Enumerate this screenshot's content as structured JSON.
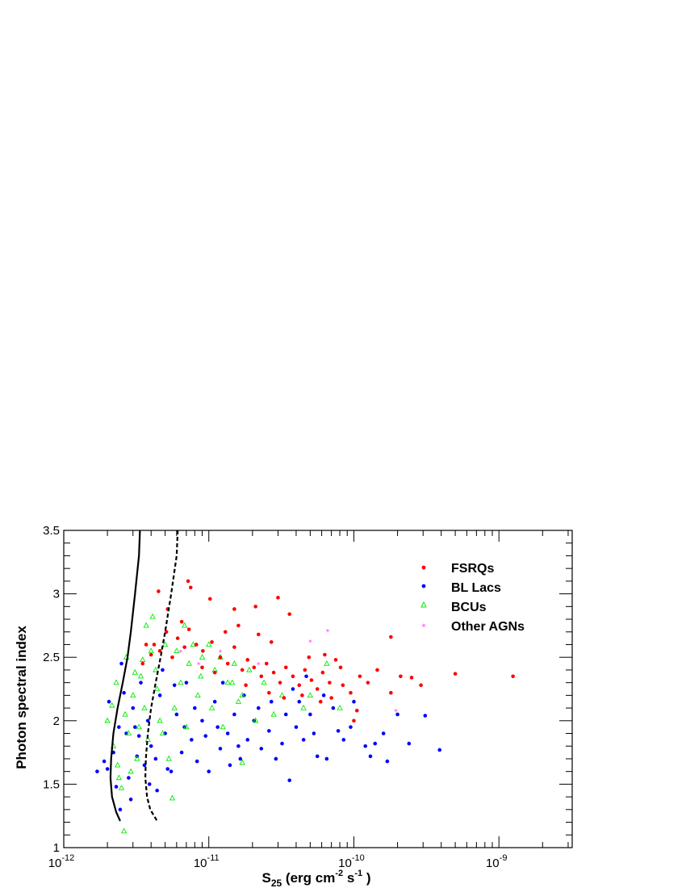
{
  "chart_data": {
    "type": "scatter",
    "title": "",
    "xlabel": {
      "base": "S",
      "sub": "25",
      "unit_open": " (erg cm",
      "exp1": "-2",
      "mid": " s",
      "exp2": "-1",
      "unit_close": " )"
    },
    "ylabel": "Photon spectral index",
    "x_scale": "log",
    "xlim": [
      1e-12,
      3.2e-09
    ],
    "ylim": [
      1.0,
      3.5
    ],
    "grid": false,
    "legend_position": "top-right",
    "x_ticks": [
      {
        "value": 1e-12,
        "base": "10",
        "exp": "-12"
      },
      {
        "value": 1e-11,
        "base": "10",
        "exp": "-11"
      },
      {
        "value": 1e-10,
        "base": "10",
        "exp": "-10"
      },
      {
        "value": 1e-09,
        "base": "10",
        "exp": "-9"
      }
    ],
    "y_ticks": [
      "1",
      "1.5",
      "2",
      "2.5",
      "3",
      "3.5"
    ],
    "colors": {
      "fsrq": "#ff0000",
      "bllac": "#0000ff",
      "bcu": "#00ee00",
      "other": "#ff66ff",
      "curve": "#000000"
    },
    "series": [
      {
        "name": "FSRQs",
        "marker": "circle",
        "color": "#ff0000",
        "points": [
          [
            4.2e-12,
            2.6
          ],
          [
            4.6e-12,
            2.55
          ],
          [
            5.1e-12,
            2.7
          ],
          [
            5.6e-12,
            2.5
          ],
          [
            6.1e-12,
            2.65
          ],
          [
            6.8e-12,
            2.58
          ],
          [
            7.3e-12,
            2.72
          ],
          [
            8.2e-12,
            2.6
          ],
          [
            9.1e-12,
            2.55
          ],
          [
            1.05e-11,
            2.62
          ],
          [
            1.2e-11,
            2.5
          ],
          [
            1.35e-11,
            2.45
          ],
          [
            1.5e-11,
            2.58
          ],
          [
            1.7e-11,
            2.4
          ],
          [
            1.85e-11,
            2.48
          ],
          [
            2.05e-11,
            2.42
          ],
          [
            2.3e-11,
            2.35
          ],
          [
            2.5e-11,
            2.45
          ],
          [
            2.8e-11,
            2.38
          ],
          [
            3.1e-11,
            2.3
          ],
          [
            3.4e-11,
            2.42
          ],
          [
            3.8e-11,
            2.35
          ],
          [
            4.2e-11,
            2.28
          ],
          [
            4.6e-11,
            2.4
          ],
          [
            5.1e-11,
            2.32
          ],
          [
            5.6e-11,
            2.25
          ],
          [
            6.1e-11,
            2.38
          ],
          [
            6.8e-11,
            2.3
          ],
          [
            7.5e-11,
            2.48
          ],
          [
            8.4e-11,
            2.28
          ],
          [
            9.5e-11,
            2.22
          ],
          [
            1.1e-10,
            2.35
          ],
          [
            1.25e-10,
            2.3
          ],
          [
            1.45e-10,
            2.4
          ],
          [
            1.8e-10,
            2.22
          ],
          [
            2.1e-10,
            2.35
          ],
          [
            2.5e-10,
            2.34
          ],
          [
            2.9e-10,
            2.28
          ],
          [
            5e-10,
            2.37
          ],
          [
            1.25e-09,
            2.35
          ],
          [
            1.8e-10,
            2.66
          ],
          [
            4.5e-12,
            3.02
          ],
          [
            7.2e-12,
            3.1
          ],
          [
            7.5e-12,
            3.05
          ],
          [
            1.02e-11,
            2.96
          ],
          [
            1.5e-11,
            2.88
          ],
          [
            2.1e-11,
            2.9
          ],
          [
            3e-11,
            2.97
          ],
          [
            3.6e-11,
            2.84
          ],
          [
            1e-10,
            2.0
          ],
          [
            1.05e-10,
            2.08
          ],
          [
            1.6e-11,
            2.75
          ],
          [
            2.2e-11,
            2.68
          ],
          [
            5.2e-12,
            2.88
          ],
          [
            6.5e-12,
            2.78
          ],
          [
            1.3e-11,
            2.7
          ],
          [
            2.7e-11,
            2.62
          ],
          [
            4.9e-11,
            2.5
          ],
          [
            6.3e-11,
            2.52
          ],
          [
            8.1e-11,
            2.42
          ],
          [
            3.7e-12,
            2.6
          ],
          [
            3.5e-12,
            2.45
          ],
          [
            4e-12,
            2.52
          ],
          [
            9e-12,
            2.42
          ],
          [
            1.1e-11,
            2.38
          ],
          [
            1.8e-11,
            2.28
          ],
          [
            2.6e-11,
            2.22
          ],
          [
            3.3e-11,
            2.18
          ],
          [
            4.4e-11,
            2.2
          ],
          [
            5.9e-11,
            2.15
          ],
          [
            7e-11,
            2.18
          ]
        ]
      },
      {
        "name": "BL Lacs",
        "marker": "circle",
        "color": "#0000ff",
        "points": [
          [
            1.7e-12,
            1.6
          ],
          [
            1.9e-12,
            1.68
          ],
          [
            2e-12,
            1.62
          ],
          [
            2.05e-12,
            2.15
          ],
          [
            2.2e-12,
            1.75
          ],
          [
            2.3e-12,
            1.48
          ],
          [
            2.45e-12,
            1.3
          ],
          [
            2.5e-12,
            2.45
          ],
          [
            2.7e-12,
            1.9
          ],
          [
            2.8e-12,
            1.55
          ],
          [
            3e-12,
            2.1
          ],
          [
            3.2e-12,
            1.72
          ],
          [
            3.4e-12,
            2.3
          ],
          [
            3.6e-12,
            1.65
          ],
          [
            3.8e-12,
            2.0
          ],
          [
            4e-12,
            1.8
          ],
          [
            4.3e-12,
            1.7
          ],
          [
            4.6e-12,
            2.2
          ],
          [
            5e-12,
            1.9
          ],
          [
            5.5e-12,
            1.6
          ],
          [
            6e-12,
            2.05
          ],
          [
            6.5e-12,
            1.75
          ],
          [
            7e-12,
            2.3
          ],
          [
            7.6e-12,
            1.85
          ],
          [
            8.3e-12,
            1.68
          ],
          [
            9e-12,
            2.0
          ],
          [
            1e-11,
            1.6
          ],
          [
            1.1e-11,
            2.15
          ],
          [
            1.2e-11,
            1.78
          ],
          [
            1.35e-11,
            1.9
          ],
          [
            1.5e-11,
            2.05
          ],
          [
            1.65e-11,
            1.7
          ],
          [
            1.85e-11,
            1.85
          ],
          [
            2.05e-11,
            2.0
          ],
          [
            2.3e-11,
            1.78
          ],
          [
            2.6e-11,
            1.92
          ],
          [
            2.9e-11,
            1.7
          ],
          [
            3.2e-11,
            1.82
          ],
          [
            3.6e-11,
            1.53
          ],
          [
            4e-11,
            1.95
          ],
          [
            4.5e-11,
            1.85
          ],
          [
            5e-11,
            2.05
          ],
          [
            5.6e-11,
            1.72
          ],
          [
            6.5e-11,
            1.7
          ],
          [
            7.2e-11,
            2.1
          ],
          [
            8.5e-11,
            1.85
          ],
          [
            1e-10,
            2.15
          ],
          [
            1.2e-10,
            1.8
          ],
          [
            1.4e-10,
            1.82
          ],
          [
            1.7e-10,
            1.68
          ],
          [
            2e-10,
            2.05
          ],
          [
            2.4e-10,
            1.82
          ],
          [
            3.1e-10,
            2.04
          ],
          [
            3.9e-10,
            1.77
          ],
          [
            1.3e-10,
            1.72
          ],
          [
            1.6e-10,
            1.9
          ],
          [
            9.5e-11,
            1.95
          ],
          [
            2.6e-12,
            2.22
          ],
          [
            2.4e-12,
            1.95
          ],
          [
            3.3e-12,
            1.88
          ],
          [
            3.9e-12,
            1.5
          ],
          [
            4.4e-12,
            1.45
          ],
          [
            5.2e-12,
            1.62
          ],
          [
            6.8e-12,
            1.95
          ],
          [
            9.5e-12,
            1.88
          ],
          [
            1.15e-11,
            1.95
          ],
          [
            1.4e-11,
            1.65
          ],
          [
            1.75e-11,
            2.2
          ],
          [
            2.2e-11,
            2.1
          ],
          [
            2.7e-11,
            2.15
          ],
          [
            3.4e-11,
            2.05
          ],
          [
            4.2e-11,
            2.15
          ],
          [
            5.3e-11,
            1.9
          ],
          [
            6.2e-11,
            2.2
          ],
          [
            7.8e-11,
            1.92
          ],
          [
            2.9e-12,
            1.38
          ],
          [
            3.1e-12,
            1.95
          ],
          [
            4.8e-12,
            2.4
          ],
          [
            5.8e-12,
            2.28
          ],
          [
            8e-12,
            2.1
          ],
          [
            1.25e-11,
            2.3
          ],
          [
            1.6e-11,
            1.8
          ],
          [
            3.8e-11,
            2.25
          ],
          [
            4.7e-11,
            2.35
          ]
        ]
      },
      {
        "name": "BCUs",
        "marker": "triangle",
        "color": "#00ee00",
        "points": [
          [
            2e-12,
            2.0
          ],
          [
            2.2e-12,
            1.8
          ],
          [
            2.3e-12,
            2.3
          ],
          [
            2.4e-12,
            1.55
          ],
          [
            2.5e-12,
            1.47
          ],
          [
            2.6e-12,
            1.13
          ],
          [
            2.7e-12,
            2.5
          ],
          [
            2.8e-12,
            1.9
          ],
          [
            3e-12,
            2.2
          ],
          [
            3.2e-12,
            1.7
          ],
          [
            3.4e-12,
            2.35
          ],
          [
            3.6e-12,
            2.1
          ],
          [
            3.8e-12,
            1.85
          ],
          [
            4e-12,
            2.55
          ],
          [
            4.3e-12,
            2.4
          ],
          [
            4.6e-12,
            2.0
          ],
          [
            5e-12,
            2.6
          ],
          [
            5.3e-12,
            1.7
          ],
          [
            5.6e-12,
            1.39
          ],
          [
            6e-12,
            2.55
          ],
          [
            6.4e-12,
            2.3
          ],
          [
            6.8e-12,
            2.75
          ],
          [
            7.3e-12,
            2.45
          ],
          [
            7.8e-12,
            2.6
          ],
          [
            8.4e-12,
            2.2
          ],
          [
            9e-12,
            2.5
          ],
          [
            1e-11,
            2.6
          ],
          [
            1.1e-11,
            2.4
          ],
          [
            1.2e-11,
            2.5
          ],
          [
            1.35e-11,
            2.3
          ],
          [
            1.5e-11,
            2.45
          ],
          [
            1.7e-11,
            2.2
          ],
          [
            1.9e-11,
            2.4
          ],
          [
            2.1e-11,
            2.0
          ],
          [
            2.4e-11,
            2.3
          ],
          [
            2.8e-11,
            2.05
          ],
          [
            3.2e-11,
            2.2
          ],
          [
            4.5e-11,
            2.1
          ],
          [
            5e-11,
            2.2
          ],
          [
            6.5e-11,
            2.45
          ],
          [
            8e-11,
            2.1
          ],
          [
            4.1e-12,
            2.82
          ],
          [
            3.7e-12,
            2.75
          ],
          [
            2.9e-12,
            1.6
          ],
          [
            3.3e-12,
            1.95
          ],
          [
            4.8e-12,
            1.9
          ],
          [
            5.8e-12,
            2.1
          ],
          [
            7e-12,
            1.95
          ],
          [
            1.05e-11,
            2.1
          ],
          [
            1.25e-11,
            1.95
          ],
          [
            1.6e-11,
            2.15
          ],
          [
            1.45e-11,
            2.3
          ],
          [
            8.8e-12,
            2.35
          ],
          [
            4.4e-12,
            2.25
          ],
          [
            3.5e-12,
            2.48
          ],
          [
            3.1e-12,
            2.38
          ],
          [
            2.65e-12,
            2.05
          ],
          [
            2.35e-12,
            1.65
          ],
          [
            2.15e-12,
            2.12
          ],
          [
            1.7e-11,
            1.67
          ]
        ]
      },
      {
        "name": "Other AGNs",
        "marker": "star",
        "color": "#ff66ff",
        "points": [
          [
            6.6e-11,
            2.71
          ],
          [
            5e-11,
            2.63
          ],
          [
            1.95e-10,
            2.08
          ],
          [
            6.4e-12,
            2.55
          ],
          [
            8.5e-12,
            2.45
          ],
          [
            1.2e-11,
            2.55
          ],
          [
            2.2e-11,
            2.45
          ]
        ]
      }
    ],
    "curves": [
      {
        "style": "solid",
        "points": [
          [
            3.35e-12,
            3.5
          ],
          [
            3.3e-12,
            3.3
          ],
          [
            3.1e-12,
            3.0
          ],
          [
            2.9e-12,
            2.7
          ],
          [
            2.75e-12,
            2.5
          ],
          [
            2.55e-12,
            2.3
          ],
          [
            2.35e-12,
            2.1
          ],
          [
            2.2e-12,
            1.9
          ],
          [
            2.12e-12,
            1.7
          ],
          [
            2.1e-12,
            1.55
          ],
          [
            2.15e-12,
            1.4
          ],
          [
            2.3e-12,
            1.28
          ],
          [
            2.45e-12,
            1.21
          ]
        ]
      },
      {
        "style": "dashed",
        "points": [
          [
            6.1e-12,
            3.5
          ],
          [
            6e-12,
            3.3
          ],
          [
            5.5e-12,
            3.0
          ],
          [
            5e-12,
            2.7
          ],
          [
            4.65e-12,
            2.5
          ],
          [
            4.3e-12,
            2.3
          ],
          [
            4e-12,
            2.1
          ],
          [
            3.8e-12,
            1.9
          ],
          [
            3.68e-12,
            1.7
          ],
          [
            3.65e-12,
            1.55
          ],
          [
            3.75e-12,
            1.4
          ],
          [
            3.95e-12,
            1.3
          ],
          [
            4.4e-12,
            1.21
          ]
        ]
      }
    ]
  }
}
